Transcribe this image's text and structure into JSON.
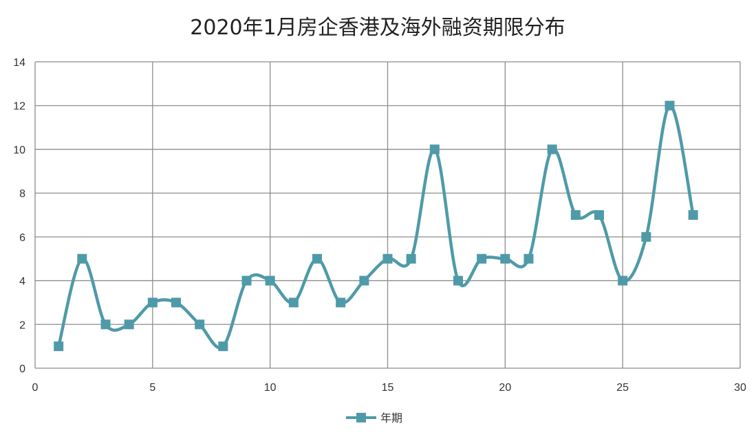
{
  "chart_data": {
    "type": "line",
    "title": "2020年1月房企香港及海外融资期限分布",
    "xlabel": "",
    "ylabel": "",
    "xlim": [
      0,
      30
    ],
    "ylim": [
      0,
      14
    ],
    "x_ticks": [
      "0",
      "5",
      "10",
      "15",
      "20",
      "25",
      "30"
    ],
    "y_ticks": [
      "0",
      "2",
      "4",
      "6",
      "8",
      "10",
      "12",
      "14"
    ],
    "grid": true,
    "legend_position": "bottom",
    "line_style": "smooth",
    "marker": "square",
    "series": [
      {
        "name": "年期",
        "color": "#4f9aa8",
        "x": [
          1,
          2,
          3,
          4,
          5,
          6,
          7,
          8,
          9,
          10,
          11,
          12,
          13,
          14,
          15,
          16,
          17,
          18,
          19,
          20,
          21,
          22,
          23,
          24,
          25,
          26,
          27,
          28
        ],
        "y": [
          1,
          5,
          2,
          2,
          3,
          3,
          2,
          1,
          4,
          4,
          3,
          5,
          3,
          4,
          5,
          5,
          10,
          4,
          5,
          5,
          5,
          10,
          7,
          7,
          4,
          6,
          12,
          7
        ]
      }
    ]
  }
}
